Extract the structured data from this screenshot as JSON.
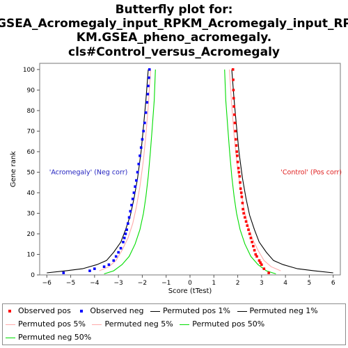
{
  "chart_data": {
    "type": "line",
    "title_lines": [
      "Butterfly plot for:",
      "GSEA_Acromegaly_input_RPKM_Acromegaly_input_RP",
      "KM.GSEA_pheno_acromegaly.",
      "cls#Control_versus_Acromegaly"
    ],
    "xlabel": "Score (tTest)",
    "ylabel": "Gene rank",
    "xlim": [
      -6.3,
      6.3
    ],
    "ylim": [
      0,
      103
    ],
    "x_ticks": [
      -6,
      -5,
      -4,
      -3,
      -2,
      -1,
      0,
      1,
      2,
      3,
      4,
      5,
      6
    ],
    "y_ticks": [
      0,
      10,
      20,
      30,
      40,
      50,
      60,
      70,
      80,
      90,
      100
    ],
    "grid": false,
    "legend_position": "bottom",
    "annotations": [
      {
        "text": "'Acromegaly' (Neg corr)",
        "x": -5.9,
        "y": 49,
        "color": "#1f1fbf"
      },
      {
        "text": "'Control' (Pos corr)",
        "x": 3.8,
        "y": 49,
        "color": "#e02020"
      }
    ],
    "series": [
      {
        "name": "Observed pos",
        "style": "dots",
        "color": "#ff0000",
        "x": [
          3.3,
          3.1,
          3.0,
          2.95,
          2.9,
          2.8,
          2.75,
          2.7,
          2.65,
          2.6,
          2.55,
          2.5,
          2.45,
          2.4,
          2.35,
          2.3,
          2.25,
          2.22,
          2.2,
          2.17,
          2.15,
          2.12,
          2.1,
          2.08,
          2.05,
          2.03,
          2.0,
          1.98,
          1.96,
          1.94,
          1.92,
          1.9,
          1.88,
          1.86,
          1.84,
          1.83,
          1.82,
          1.81,
          1.8
        ],
        "y": [
          1,
          3,
          5,
          6,
          7,
          9,
          10,
          12,
          14,
          16,
          18,
          20,
          22,
          24,
          26,
          28,
          30,
          32,
          35,
          38,
          40,
          42,
          45,
          48,
          50,
          52,
          55,
          58,
          60,
          63,
          66,
          70,
          74,
          78,
          82,
          86,
          90,
          95,
          100
        ]
      },
      {
        "name": "Observed neg",
        "style": "dots",
        "color": "#0000ff",
        "x": [
          -5.3,
          -4.2,
          -4.0,
          -3.6,
          -3.4,
          -3.2,
          -3.1,
          -3.0,
          -2.9,
          -2.8,
          -2.75,
          -2.7,
          -2.65,
          -2.6,
          -2.55,
          -2.5,
          -2.45,
          -2.4,
          -2.35,
          -2.3,
          -2.25,
          -2.2,
          -2.15,
          -2.1,
          -2.05,
          -2.0,
          -1.95,
          -1.9,
          -1.85,
          -1.8,
          -1.77,
          -1.75,
          -1.72,
          -1.7
        ],
        "y": [
          1,
          2,
          3,
          4,
          5,
          7,
          9,
          11,
          13,
          16,
          18,
          20,
          22,
          25,
          28,
          31,
          34,
          37,
          40,
          43,
          46,
          50,
          54,
          58,
          62,
          66,
          70,
          74,
          79,
          84,
          88,
          92,
          96,
          100
        ]
      },
      {
        "name": "Permuted pos 1%",
        "style": "line",
        "color": "#000000",
        "x": [
          1.75,
          1.85,
          1.95,
          2.05,
          2.2,
          2.35,
          2.5,
          2.7,
          2.9,
          3.2,
          3.5,
          3.9,
          4.5,
          5.2,
          6.0
        ],
        "y": [
          100,
          85,
          72,
          60,
          47,
          37,
          29,
          22,
          16,
          11,
          7,
          5,
          3,
          2,
          1
        ]
      },
      {
        "name": "Permuted neg 1%",
        "style": "line",
        "color": "#000000",
        "x": [
          -1.75,
          -1.85,
          -1.95,
          -2.05,
          -2.2,
          -2.35,
          -2.5,
          -2.7,
          -2.9,
          -3.2,
          -3.5,
          -3.9,
          -4.5,
          -5.2,
          -6.0
        ],
        "y": [
          100,
          85,
          72,
          60,
          47,
          37,
          29,
          22,
          16,
          11,
          7,
          5,
          3,
          2,
          1
        ]
      },
      {
        "name": "Permuted pos 5%",
        "style": "line",
        "color": "#ffaaaa",
        "x": [
          1.65,
          1.75,
          1.85,
          1.95,
          2.1,
          2.25,
          2.4,
          2.6,
          2.85,
          3.1,
          3.4,
          3.8
        ],
        "y": [
          100,
          82,
          68,
          56,
          43,
          33,
          25,
          18,
          12,
          7,
          4,
          2
        ]
      },
      {
        "name": "Permuted neg 5%",
        "style": "line",
        "color": "#ffaaaa",
        "x": [
          -1.65,
          -1.75,
          -1.85,
          -1.95,
          -2.1,
          -2.25,
          -2.4,
          -2.6,
          -2.85,
          -3.1,
          -3.4,
          -3.8
        ],
        "y": [
          100,
          82,
          68,
          56,
          43,
          33,
          25,
          18,
          12,
          7,
          4,
          2
        ]
      },
      {
        "name": "Permuted pos 50%",
        "style": "line",
        "color": "#00dd00",
        "x": [
          1.45,
          1.5,
          1.58,
          1.66,
          1.75,
          1.85,
          1.95,
          2.1,
          2.3,
          2.55,
          2.85,
          3.2,
          3.6
        ],
        "y": [
          100,
          85,
          72,
          60,
          48,
          38,
          30,
          22,
          15,
          9,
          5,
          2,
          0.5
        ]
      },
      {
        "name": "Permuted neg 50%",
        "style": "line",
        "color": "#00dd00",
        "x": [
          -1.45,
          -1.5,
          -1.58,
          -1.66,
          -1.75,
          -1.85,
          -1.95,
          -2.1,
          -2.3,
          -2.55,
          -2.85,
          -3.2,
          -3.6
        ],
        "y": [
          100,
          85,
          72,
          60,
          48,
          38,
          30,
          22,
          15,
          9,
          5,
          2,
          0.5
        ]
      }
    ]
  }
}
